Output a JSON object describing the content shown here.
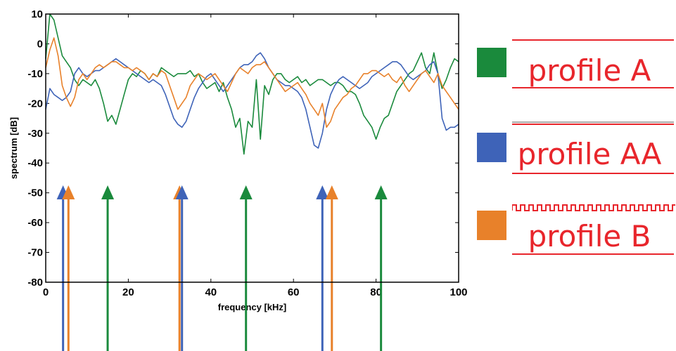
{
  "colors": {
    "green": "#1a8a3c",
    "blue": "#3e63b8",
    "orange": "#e8812a",
    "red": "#e8262c"
  },
  "legend": [
    {
      "label": "profile A",
      "color_key": "green",
      "profile": "flat"
    },
    {
      "label": "profile AA",
      "color_key": "blue",
      "profile": "flat"
    },
    {
      "label": "profile B",
      "color_key": "orange",
      "profile": "corrugated"
    }
  ],
  "chart_data": {
    "type": "line",
    "xlabel": "frequency  [kHz]",
    "ylabel": "spectrum  [dB]",
    "xlim": [
      0,
      100
    ],
    "ylim": [
      -80,
      10
    ],
    "xticks": [
      0,
      20,
      40,
      60,
      80,
      100
    ],
    "yticks": [
      10,
      0,
      -10,
      -20,
      -30,
      -40,
      -50,
      -60,
      -70,
      -80
    ],
    "grid": false,
    "series": [
      {
        "color_key": "green",
        "x": [
          0,
          1,
          2,
          3,
          4,
          5,
          6,
          7,
          8,
          9,
          10,
          11,
          12,
          13,
          14,
          15,
          16,
          17,
          18,
          19,
          20,
          21,
          22,
          23,
          24,
          25,
          26,
          27,
          28,
          29,
          30,
          31,
          32,
          33,
          34,
          35,
          36,
          37,
          38,
          39,
          40,
          41,
          42,
          43,
          44,
          45,
          46,
          47,
          48,
          49,
          50,
          51,
          52,
          53,
          54,
          55,
          56,
          57,
          58,
          59,
          60,
          61,
          62,
          63,
          64,
          65,
          66,
          67,
          68,
          69,
          70,
          71,
          72,
          73,
          74,
          75,
          76,
          77,
          78,
          79,
          80,
          81,
          82,
          83,
          84,
          85,
          86,
          87,
          88,
          89,
          90,
          91,
          92,
          93,
          94,
          95,
          96,
          97,
          98,
          99,
          100
        ],
        "y": [
          -5,
          10,
          8,
          2,
          -4,
          -6,
          -8,
          -12,
          -14,
          -12,
          -13,
          -14,
          -12,
          -15,
          -20,
          -26,
          -24,
          -27,
          -22,
          -17,
          -12,
          -10,
          -11,
          -9,
          -10,
          -12,
          -10,
          -11,
          -8,
          -9,
          -10,
          -11,
          -10,
          -10,
          -10,
          -9,
          -11,
          -10,
          -13,
          -15,
          -14,
          -13,
          -16,
          -13,
          -18,
          -22,
          -28,
          -25,
          -37,
          -26,
          -28,
          -12,
          -32,
          -14,
          -17,
          -12,
          -10,
          -10,
          -12,
          -13,
          -12,
          -11,
          -13,
          -12,
          -14,
          -13,
          -12,
          -12,
          -13,
          -14,
          -13,
          -13,
          -14,
          -16,
          -16,
          -17,
          -20,
          -24,
          -26,
          -28,
          -32,
          -28,
          -25,
          -24,
          -20,
          -16,
          -14,
          -12,
          -10,
          -9,
          -6,
          -3,
          -8,
          -10,
          -3,
          -10,
          -15,
          -12,
          -8,
          -5,
          -6
        ]
      },
      {
        "color_key": "blue",
        "x": [
          0,
          1,
          2,
          3,
          4,
          5,
          6,
          7,
          8,
          9,
          10,
          11,
          12,
          13,
          14,
          15,
          16,
          17,
          18,
          19,
          20,
          21,
          22,
          23,
          24,
          25,
          26,
          27,
          28,
          29,
          30,
          31,
          32,
          33,
          34,
          35,
          36,
          37,
          38,
          39,
          40,
          41,
          42,
          43,
          44,
          45,
          46,
          47,
          48,
          49,
          50,
          51,
          52,
          53,
          54,
          55,
          56,
          57,
          58,
          59,
          60,
          61,
          62,
          63,
          64,
          65,
          66,
          67,
          68,
          69,
          70,
          71,
          72,
          73,
          74,
          75,
          76,
          77,
          78,
          79,
          80,
          81,
          82,
          83,
          84,
          85,
          86,
          87,
          88,
          89,
          90,
          91,
          92,
          93,
          94,
          95,
          96,
          97,
          98,
          99,
          100
        ],
        "y": [
          -22,
          -15,
          -17,
          -18,
          -19,
          -18,
          -16,
          -10,
          -8,
          -10,
          -11,
          -10,
          -9,
          -9,
          -8,
          -7,
          -6,
          -5,
          -6,
          -7,
          -8,
          -9,
          -10,
          -11,
          -12,
          -13,
          -12,
          -13,
          -14,
          -17,
          -21,
          -25,
          -27,
          -28,
          -26,
          -22,
          -18,
          -15,
          -13,
          -11,
          -10,
          -12,
          -14,
          -16,
          -14,
          -12,
          -10,
          -8,
          -7,
          -7,
          -6,
          -4,
          -3,
          -5,
          -8,
          -10,
          -12,
          -13,
          -14,
          -14,
          -15,
          -16,
          -18,
          -22,
          -28,
          -34,
          -35,
          -30,
          -22,
          -17,
          -14,
          -12,
          -11,
          -12,
          -13,
          -14,
          -15,
          -14,
          -13,
          -11,
          -10,
          -9,
          -8,
          -7,
          -6,
          -6,
          -7,
          -9,
          -11,
          -12,
          -11,
          -10,
          -9,
          -7,
          -6,
          -10,
          -25,
          -29,
          -28,
          -28,
          -27
        ]
      },
      {
        "color_key": "orange",
        "x": [
          0,
          1,
          2,
          3,
          4,
          5,
          6,
          7,
          8,
          9,
          10,
          11,
          12,
          13,
          14,
          15,
          16,
          17,
          18,
          19,
          20,
          21,
          22,
          23,
          24,
          25,
          26,
          27,
          28,
          29,
          30,
          31,
          32,
          33,
          34,
          35,
          36,
          37,
          38,
          39,
          40,
          41,
          42,
          43,
          44,
          45,
          46,
          47,
          48,
          49,
          50,
          51,
          52,
          53,
          54,
          55,
          56,
          57,
          58,
          59,
          60,
          61,
          62,
          63,
          64,
          65,
          66,
          67,
          68,
          69,
          70,
          71,
          72,
          73,
          74,
          75,
          76,
          77,
          78,
          79,
          80,
          81,
          82,
          83,
          84,
          85,
          86,
          87,
          88,
          89,
          90,
          91,
          92,
          93,
          94,
          95,
          96,
          97,
          98,
          99,
          100
        ],
        "y": [
          -8,
          -2,
          2,
          -4,
          -14,
          -18,
          -21,
          -18,
          -12,
          -10,
          -12,
          -10,
          -8,
          -7,
          -8,
          -7,
          -6,
          -6,
          -7,
          -8,
          -8,
          -9,
          -8,
          -9,
          -10,
          -12,
          -10,
          -11,
          -9,
          -10,
          -14,
          -18,
          -22,
          -20,
          -18,
          -14,
          -12,
          -10,
          -11,
          -12,
          -11,
          -10,
          -12,
          -14,
          -16,
          -13,
          -10,
          -8,
          -9,
          -10,
          -8,
          -7,
          -7,
          -6,
          -8,
          -10,
          -12,
          -14,
          -16,
          -15,
          -14,
          -13,
          -15,
          -17,
          -20,
          -22,
          -24,
          -20,
          -28,
          -26,
          -22,
          -20,
          -18,
          -17,
          -15,
          -14,
          -12,
          -10,
          -10,
          -9,
          -9,
          -10,
          -11,
          -10,
          -12,
          -13,
          -11,
          -14,
          -16,
          -14,
          -12,
          -10,
          -9,
          -11,
          -13,
          -10,
          -14,
          -16,
          -18,
          -20,
          -22
        ]
      }
    ],
    "arrows": [
      {
        "x": 4.2,
        "color_key": "blue"
      },
      {
        "x": 5.5,
        "color_key": "orange"
      },
      {
        "x": 15.0,
        "color_key": "green"
      },
      {
        "x": 32.4,
        "color_key": "orange"
      },
      {
        "x": 33.0,
        "color_key": "blue"
      },
      {
        "x": 48.5,
        "color_key": "green"
      },
      {
        "x": 67.0,
        "color_key": "blue"
      },
      {
        "x": 69.3,
        "color_key": "orange"
      },
      {
        "x": 81.2,
        "color_key": "green"
      }
    ]
  }
}
